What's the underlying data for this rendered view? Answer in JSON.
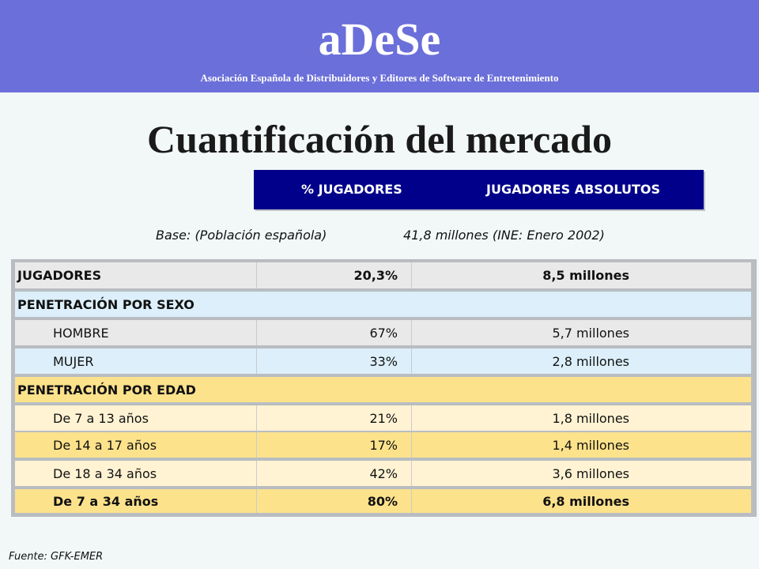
{
  "header": {
    "brand": "aDeSe",
    "tagline": "Asociación Española de Distribuidores y Editores de Software de Entretenimiento"
  },
  "title": "Cuantificación del mercado",
  "columns": {
    "pct": "% JUGADORES",
    "abs": "JUGADORES ABSOLUTOS"
  },
  "base": {
    "label": "Base: (Población española)",
    "value": "41,8 millones (INE: Enero 2002)"
  },
  "rows": [
    {
      "label": "JUGADORES",
      "pct": "20,3%",
      "abs": "8,5 millones"
    },
    {
      "label": "PENETRACIÓN POR SEXO",
      "pct": "",
      "abs": ""
    },
    {
      "label": "HOMBRE",
      "pct": "67%",
      "abs": "5,7 millones"
    },
    {
      "label": "MUJER",
      "pct": "33%",
      "abs": "2,8 millones"
    },
    {
      "label": "PENETRACIÓN POR EDAD",
      "pct": "",
      "abs": ""
    },
    {
      "label": "De 7 a 13 años",
      "pct": "21%",
      "abs": "1,8 millones"
    },
    {
      "label": "De 14 a 17 años",
      "pct": "17%",
      "abs": "1,4 millones"
    },
    {
      "label": "De 18 a 34 años",
      "pct": "42%",
      "abs": "3,6 millones"
    },
    {
      "label": "De 7 a 34 años",
      "pct": "80%",
      "abs": "6,8 millones"
    }
  ],
  "source": "Fuente: GFK-EMER",
  "colors": {
    "banner": "#6b6fd9",
    "header_bar": "#00008a",
    "row_grey": "#e9e9ea",
    "row_blue": "#dceffa",
    "row_yellow": "#fde28c",
    "row_cream": "#fff3d3"
  }
}
